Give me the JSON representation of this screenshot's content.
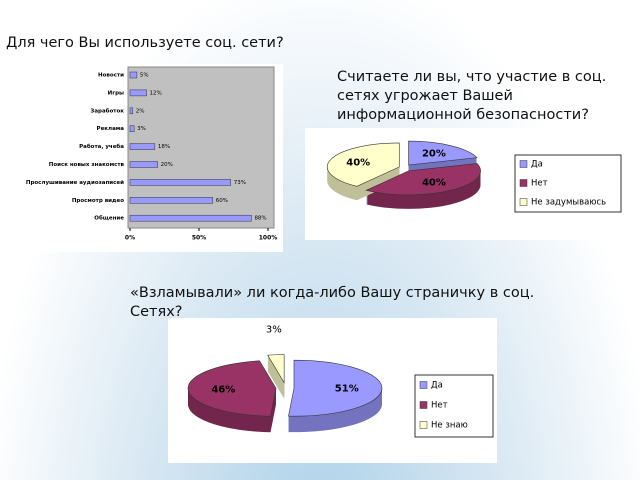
{
  "chart_data": [
    {
      "type": "bar",
      "title": "Для чего Вы используете соц. сети?",
      "categories": [
        "Новости",
        "Игры",
        "Заработок",
        "Реклама",
        "Работа, учеба",
        "Поиск новых знакомств",
        "Прослушивание аудиозаписей",
        "Просмотр видео",
        "Общение"
      ],
      "values": [
        5,
        12,
        2,
        3,
        18,
        20,
        73,
        60,
        88
      ],
      "value_labels": [
        "5%",
        "12%",
        "2%",
        "3%",
        "18%",
        "20%",
        "73%",
        "60%",
        "88%"
      ],
      "color": "#9999ff",
      "xlim": [
        0,
        100
      ],
      "xticks": [
        {
          "value": 0,
          "label": "0%"
        },
        {
          "value": 50,
          "label": "50%"
        },
        {
          "value": 100,
          "label": "100%"
        }
      ]
    },
    {
      "type": "pie",
      "title": "Считаете ли вы, что участие в соц. сетях угрожает Вашей информационной безопасности?",
      "categories": [
        "Да",
        "Нет",
        "Не задумываюсь"
      ],
      "values": [
        20,
        40,
        40
      ],
      "value_labels": [
        "20%",
        "40%",
        "40%"
      ],
      "colors": [
        "#9999ff",
        "#993366",
        "#ffffcc"
      ]
    },
    {
      "type": "pie",
      "title": "«Взламывали» ли когда-либо Вашу страничку в соц. Сетях?",
      "categories": [
        "Да",
        "Нет",
        "Не знаю"
      ],
      "values": [
        51,
        46,
        3
      ],
      "value_labels": [
        "51%",
        "46%",
        "3%"
      ],
      "colors": [
        "#9999ff",
        "#993366",
        "#ffffcc"
      ]
    }
  ]
}
